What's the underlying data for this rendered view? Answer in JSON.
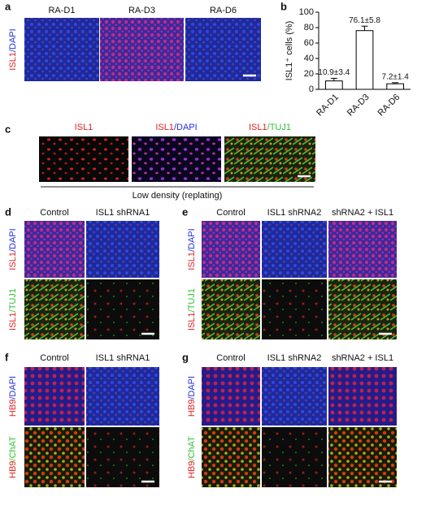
{
  "panel_a": {
    "letter": "a",
    "columns": [
      "RA-D1",
      "RA-D3",
      "RA-D6"
    ],
    "row_labels": [
      [
        "ISL1",
        "/DAPI"
      ]
    ]
  },
  "chart_data": {
    "type": "bar",
    "letter": "b",
    "ylabel": "ISL1⁺ cells (%)",
    "categories": [
      "RA-D1",
      "RA-D3",
      "RA-D6"
    ],
    "values": [
      10.9,
      76.1,
      7.2
    ],
    "errors": [
      3.4,
      5.8,
      1.4
    ],
    "value_labels": [
      "10.9±3.4",
      "76.1±5.8",
      "7.2±1.4"
    ],
    "color": "#ffffff",
    "ylim": [
      0,
      100
    ],
    "yticks": [
      0,
      20,
      40,
      60,
      80,
      100
    ]
  },
  "panel_c": {
    "letter": "c",
    "columns": [
      [
        "ISL1"
      ],
      [
        "ISL1",
        "/DAPI"
      ],
      [
        "ISL1",
        "/TUJ1"
      ]
    ],
    "caption": "Low density (replating)"
  },
  "panel_d": {
    "letter": "d",
    "columns": [
      "Control",
      "ISL1 shRNA1"
    ],
    "row_labels": [
      [
        "ISL1",
        "/DAPI"
      ],
      [
        "ISL1",
        "/TUJ1"
      ]
    ]
  },
  "panel_e": {
    "letter": "e",
    "columns": [
      "Control",
      "ISL1 shRNA2",
      "shRNA2 + ISL1"
    ],
    "row_labels": [
      [
        "ISL1",
        "/DAPI"
      ],
      [
        "ISL1",
        "/TUJ1"
      ]
    ]
  },
  "panel_f": {
    "letter": "f",
    "columns": [
      "Control",
      "ISL1 shRNA1"
    ],
    "row_labels": [
      [
        "HB9",
        "/DAPI"
      ],
      [
        "HB9",
        "/ChAT"
      ]
    ]
  },
  "panel_g": {
    "letter": "g",
    "columns": [
      "Control",
      "ISL1 shRNA2",
      "shRNA2 + ISL1"
    ],
    "row_labels": [
      [
        "HB9",
        "/DAPI"
      ],
      [
        "HB9",
        "/ChAT"
      ]
    ]
  }
}
